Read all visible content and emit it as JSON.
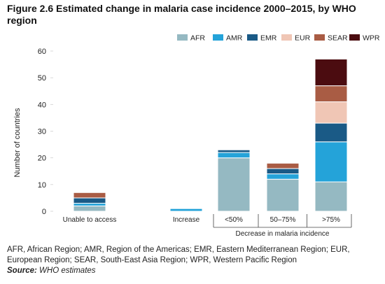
{
  "title": "Figure 2.6 Estimated change in malaria case incidence 2000–2015, by WHO region",
  "notes": {
    "definitions": "AFR, African Region; AMR, Region of the Americas; EMR, Eastern Mediterranean Region; EUR, European Region; SEAR, South-East Asia Region; WPR, Western Pacific Region",
    "source_label": "Source:",
    "source_text": "WHO estimates"
  },
  "chart_data": {
    "type": "bar",
    "stacked": true,
    "title": "",
    "xlabel": "",
    "ylabel": "Number of countries",
    "ylim": [
      0,
      60
    ],
    "yticks": [
      0,
      10,
      20,
      30,
      40,
      50,
      60
    ],
    "grid": false,
    "legend_position": "top-right",
    "categories": [
      "Unable to access",
      "Increase",
      "<50%",
      "50–75%",
      ">75%"
    ],
    "group_label": "Decrease in malaria incidence",
    "group_categories": [
      "<50%",
      "50–75%",
      ">75%"
    ],
    "series": [
      {
        "name": "AFR",
        "color": "#95b9c2",
        "values": [
          2,
          0,
          20,
          12,
          11
        ]
      },
      {
        "name": "AMR",
        "color": "#24a3d9",
        "values": [
          1,
          1,
          2,
          2,
          15
        ]
      },
      {
        "name": "EMR",
        "color": "#1a5a86",
        "values": [
          2,
          0,
          1,
          2,
          7
        ]
      },
      {
        "name": "EUR",
        "color": "#f0c6b5",
        "values": [
          0,
          0,
          0,
          0,
          8
        ]
      },
      {
        "name": "SEAR",
        "color": "#a95c44",
        "values": [
          2,
          0,
          0,
          2,
          6
        ]
      },
      {
        "name": "WPR",
        "color": "#4b0c10",
        "values": [
          0,
          0,
          0,
          0,
          10
        ]
      }
    ]
  }
}
